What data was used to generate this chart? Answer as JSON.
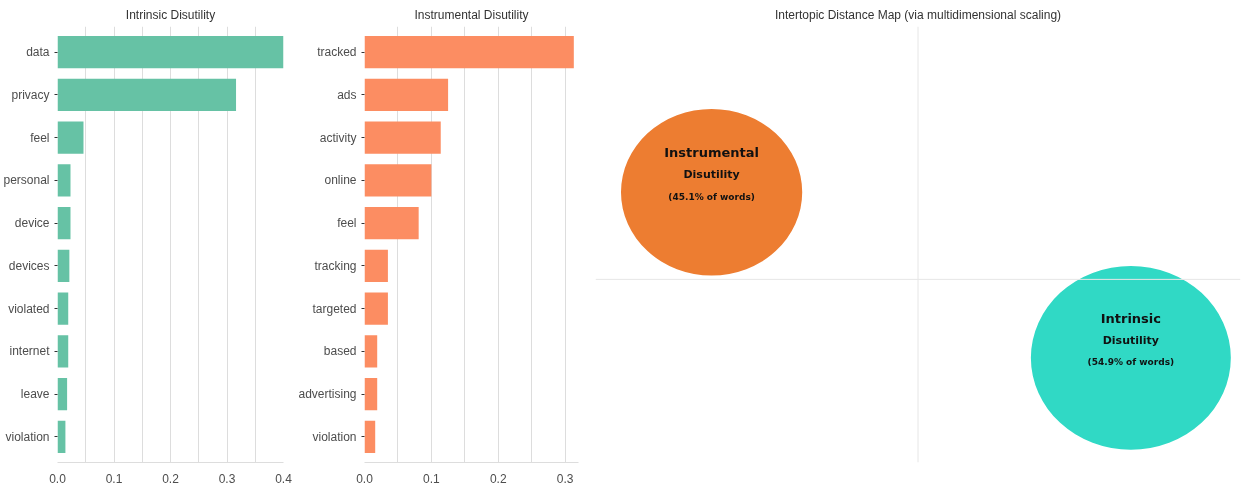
{
  "chart_data": [
    {
      "type": "bar",
      "orientation": "horizontal",
      "title": "Intrinsic Disutility",
      "categories": [
        "data",
        "privacy",
        "feel",
        "personal",
        "device",
        "devices",
        "violated",
        "internet",
        "leave",
        "violation"
      ],
      "values": [
        0.4,
        0.316,
        0.046,
        0.023,
        0.023,
        0.021,
        0.019,
        0.019,
        0.017,
        0.014
      ],
      "color": "#66c2a5",
      "xlim": [
        0,
        0.4
      ],
      "xticks": [
        {
          "value": 0,
          "label": "0.0"
        },
        {
          "value": 0.05,
          "label": null
        },
        0.1,
        {
          "value": 0.15,
          "label": null
        },
        0.2,
        {
          "value": 0.25,
          "label": null
        },
        0.3,
        {
          "value": 0.35,
          "label": null
        },
        0.4
      ],
      "grid": "x"
    },
    {
      "type": "bar",
      "orientation": "horizontal",
      "title": "Instrumental Disutility",
      "categories": [
        "tracked",
        "ads",
        "activity",
        "online",
        "feel",
        "tracking",
        "targeted",
        "based",
        "advertising",
        "violation"
      ],
      "values": [
        0.313,
        0.125,
        0.114,
        0.1,
        0.081,
        0.035,
        0.035,
        0.019,
        0.019,
        0.016
      ],
      "color": "#fc8d62",
      "xlim": [
        0,
        0.32
      ],
      "xticks": [
        {
          "value": 0,
          "label": "0.0"
        },
        {
          "value": 0.05,
          "label": null
        },
        0.1,
        {
          "value": 0.15,
          "label": null
        },
        0.2,
        {
          "value": 0.25,
          "label": null
        },
        0.3
      ],
      "grid": "x"
    },
    {
      "type": "other",
      "title": "Intertopic Distance Map (via multidimensional scaling)",
      "categories": [
        "Instrumental Disutility",
        "Intrinsic Disutility"
      ],
      "values": [
        45.1,
        54.9
      ],
      "value_labels": [
        "(45.1% of words)",
        "(54.9% of words)"
      ],
      "colors": [
        "#ed7d31",
        "#30d9c5"
      ]
    }
  ]
}
